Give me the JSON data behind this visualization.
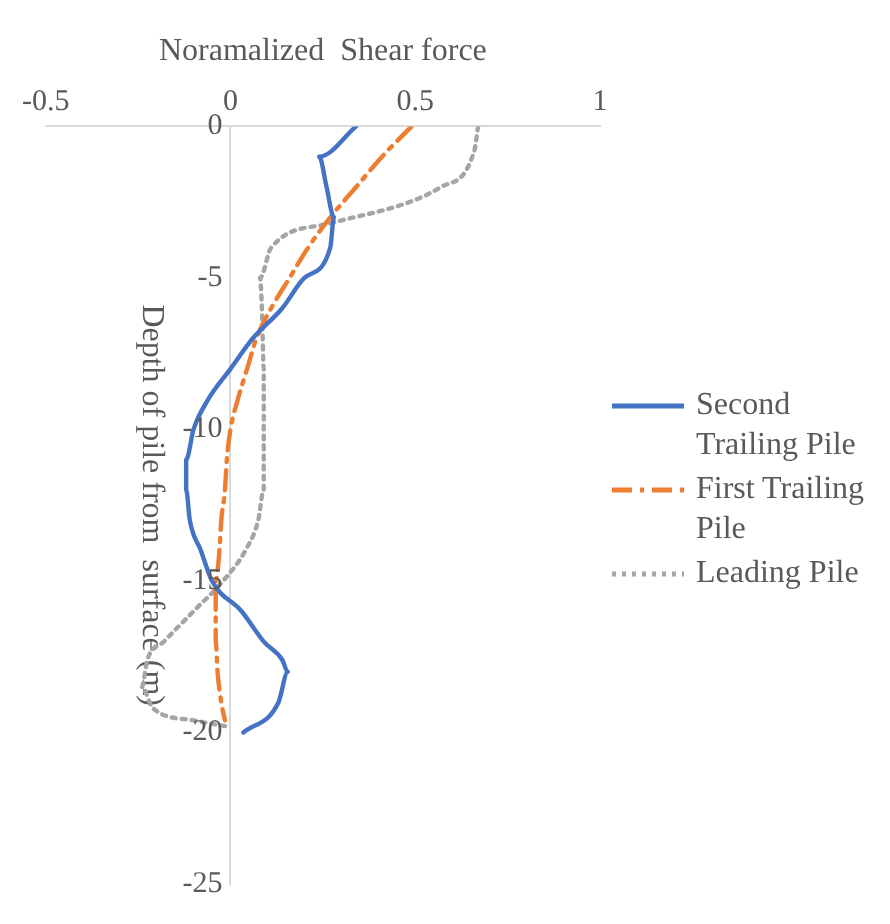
{
  "chart_data": {
    "type": "line",
    "xlabel": "Noramalized  Shear force",
    "ylabel": "Depth of pile from  surface (m)",
    "xlim": [
      -0.5,
      1
    ],
    "xticks": [
      -0.5,
      0,
      0.5,
      1
    ],
    "ylim": [
      -25,
      0
    ],
    "yticks": [
      -25,
      -20,
      -15,
      -10,
      -5,
      0
    ],
    "grid": false,
    "legend": "right",
    "marker": "none",
    "series": [
      {
        "name": "Second Trailing Pile",
        "color": "#4472c4",
        "line_style": "solid",
        "x": [
          0.34,
          0.24,
          0.26,
          0.28,
          0.27,
          0.2,
          0.14,
          0.06,
          0.0,
          -0.06,
          -0.1,
          -0.12,
          -0.12,
          -0.11,
          -0.08,
          -0.05,
          0.03,
          0.09,
          0.14,
          0.155,
          0.13,
          0.035
        ],
        "values": [
          0,
          -1,
          -2,
          -3,
          -4,
          -5,
          -6,
          -7,
          -8,
          -9,
          -10,
          -11,
          -12,
          -13,
          -14,
          -15,
          -16,
          -17,
          -17.6,
          -18,
          -19,
          -20
        ]
      },
      {
        "name": "First Trailing Pile",
        "color": "#ed7d31",
        "line_style": "dashed",
        "x": [
          0.49,
          0.41,
          0.34,
          0.27,
          0.21,
          0.16,
          0.11,
          0.07,
          0.045,
          0.02,
          0.0,
          -0.01,
          -0.015,
          -0.025,
          -0.03,
          -0.04,
          -0.04,
          -0.04,
          -0.035,
          -0.025,
          -0.015
        ],
        "values": [
          0,
          -1,
          -2,
          -3,
          -4,
          -5,
          -6,
          -7,
          -8,
          -9,
          -10,
          -11,
          -12,
          -13,
          -14,
          -15,
          -16,
          -17,
          -18,
          -19,
          -19.6
        ]
      },
      {
        "name": "Leading Pile",
        "color": "#a5a5a5",
        "line_style": "dotted",
        "x": [
          0.67,
          0.66,
          0.57,
          0.27,
          0.11,
          0.08,
          0.085,
          0.09,
          0.09,
          0.09,
          0.075,
          0.04,
          -0.02,
          -0.1,
          -0.18,
          -0.225,
          -0.24,
          -0.21,
          -0.1,
          -0.01
        ],
        "values": [
          0,
          -0.8,
          -2,
          -3.2,
          -4,
          -5,
          -6,
          -8,
          -10,
          -12,
          -13,
          -14,
          -15,
          -16,
          -17,
          -17.6,
          -18.5,
          -19.2,
          -19.6,
          -19.8
        ]
      }
    ]
  }
}
